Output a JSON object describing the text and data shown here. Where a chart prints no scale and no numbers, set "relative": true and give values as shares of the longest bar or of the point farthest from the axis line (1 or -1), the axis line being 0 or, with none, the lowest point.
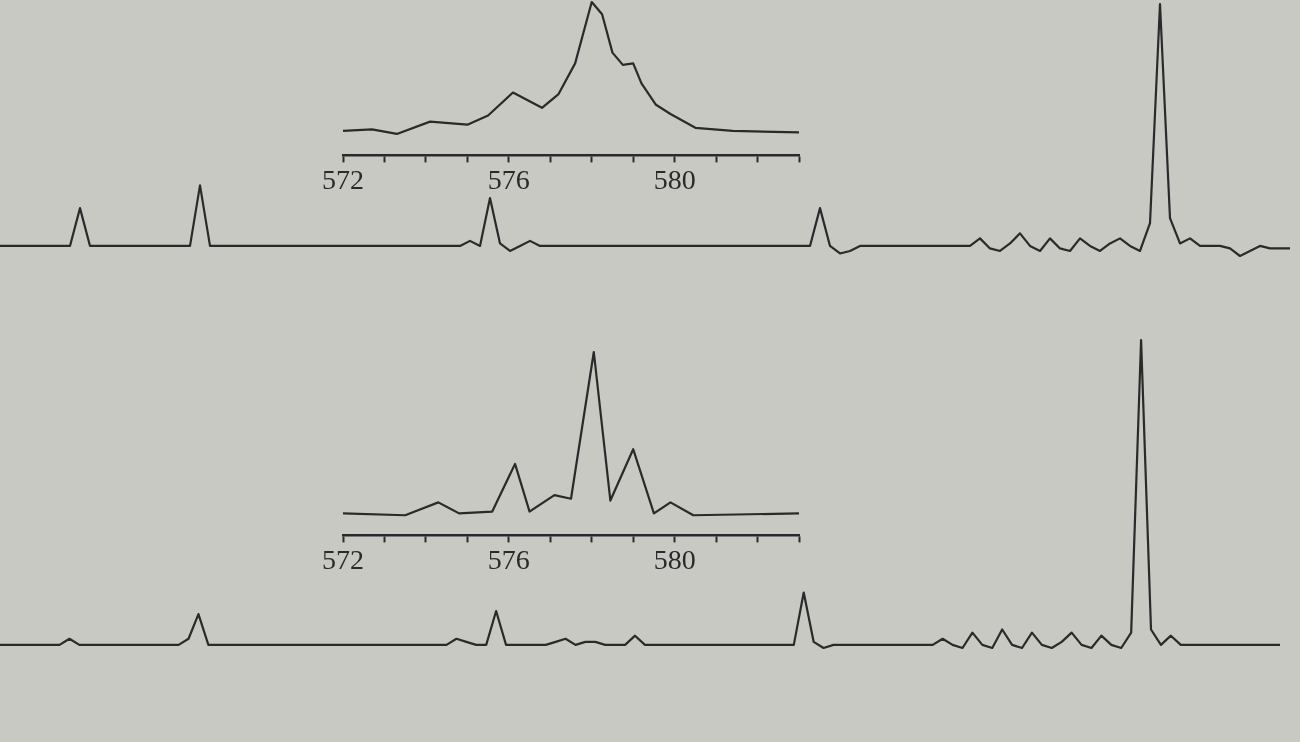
{
  "chart_data": [
    {
      "type": "line",
      "relative": true,
      "tick_labels": "x",
      "xlim": [
        572,
        583
      ],
      "xticks": [
        572,
        {
          "value": 573,
          "label": null
        },
        {
          "value": 574,
          "label": null
        },
        {
          "value": 575,
          "label": null
        },
        576,
        {
          "value": 577,
          "label": null
        },
        {
          "value": 578,
          "label": null
        },
        {
          "value": 579,
          "label": null
        },
        580,
        {
          "value": 581,
          "label": null
        },
        {
          "value": 582,
          "label": null
        },
        {
          "value": 583,
          "label": null
        }
      ],
      "series": [
        {
          "color": "#2a2a2a",
          "x": [
            572.0,
            572.7,
            573.3,
            574.1,
            575.0,
            575.5,
            576.1,
            576.8,
            577.2,
            577.6,
            578.0,
            578.25,
            578.5,
            578.75,
            579.0,
            579.2,
            579.55,
            579.9,
            580.5,
            581.4,
            583.0
          ],
          "values": [
            0.16,
            0.17,
            0.14,
            0.22,
            0.2,
            0.26,
            0.41,
            0.31,
            0.4,
            0.6,
            1,
            0.92,
            0.67,
            0.59,
            0.6,
            0.47,
            0.33,
            0.27,
            0.18,
            0.16,
            0.15
          ]
        }
      ]
    },
    {
      "type": "line",
      "relative": true,
      "tick_labels": false,
      "categories": [
        null,
        null,
        null,
        null,
        null,
        null,
        null,
        null,
        null,
        null,
        null,
        null,
        null,
        null,
        null,
        null,
        null,
        null,
        null,
        null,
        null,
        null,
        null,
        null,
        null,
        null,
        null,
        null,
        null,
        null,
        null,
        null,
        null,
        null,
        null,
        null,
        null,
        null,
        null,
        null,
        null,
        null,
        null,
        null,
        null,
        null,
        null,
        null,
        null,
        null,
        null,
        null,
        null,
        null,
        null,
        null,
        null,
        null,
        null,
        null,
        null,
        null,
        null,
        null,
        null,
        null,
        null,
        null,
        null,
        null,
        null,
        null,
        null,
        null,
        null,
        null,
        null,
        null,
        null,
        null,
        null,
        null,
        null,
        null,
        null,
        null,
        null,
        null,
        null,
        null,
        null,
        null,
        null,
        null,
        null,
        null,
        null,
        null,
        null,
        null,
        null,
        null,
        null,
        null,
        null,
        null,
        null,
        null,
        null,
        null,
        null,
        null,
        null,
        null,
        null,
        null,
        null,
        null,
        null,
        null,
        null,
        null,
        null,
        null,
        null,
        null,
        null,
        null,
        null,
        null
      ],
      "series": [
        {
          "color": "#2a2a2a",
          "values": [
            0.04,
            0.04,
            0.04,
            0.04,
            0.04,
            0.04,
            0.04,
            0.04,
            0.19,
            0.04,
            0.04,
            0.04,
            0.04,
            0.04,
            0.04,
            0.04,
            0.04,
            0.04,
            0.04,
            0.04,
            0.28,
            0.04,
            0.04,
            0.04,
            0.04,
            0.04,
            0.04,
            0.04,
            0.04,
            0.04,
            0.04,
            0.04,
            0.04,
            0.04,
            0.04,
            0.04,
            0.04,
            0.04,
            0.04,
            0.04,
            0.04,
            0.04,
            0.04,
            0.04,
            0.04,
            0.04,
            0.04,
            0.06,
            0.04,
            0.23,
            0.05,
            0.02,
            0.04,
            0.06,
            0.04,
            0.04,
            0.04,
            0.04,
            0.04,
            0.04,
            0.04,
            0.04,
            0.04,
            0.04,
            0.04,
            0.04,
            0.04,
            0.04,
            0.04,
            0.04,
            0.04,
            0.04,
            0.04,
            0.04,
            0.04,
            0.04,
            0.04,
            0.04,
            0.04,
            0.04,
            0.04,
            0.04,
            0.19,
            0.04,
            0.01,
            0.02,
            0.04,
            0.04,
            0.04,
            0.04,
            0.04,
            0.04,
            0.04,
            0.04,
            0.04,
            0.04,
            0.04,
            0.04,
            0.07,
            0.03,
            0.02,
            0.05,
            0.09,
            0.04,
            0.02,
            0.07,
            0.03,
            0.02,
            0.07,
            0.04,
            0.02,
            0.05,
            0.07,
            0.04,
            0.02,
            0.13,
            1,
            0.15,
            0.05,
            0.07,
            0.04,
            0.04,
            0.04,
            0.03,
            0,
            0.02,
            0.04,
            0.03,
            0.03,
            0.03
          ]
        }
      ]
    },
    {
      "type": "line",
      "relative": true,
      "tick_labels": "x",
      "xlim": [
        572,
        583
      ],
      "xticks": [
        572,
        {
          "value": 573,
          "label": null
        },
        {
          "value": 574,
          "label": null
        },
        {
          "value": 575,
          "label": null
        },
        576,
        {
          "value": 577,
          "label": null
        },
        {
          "value": 578,
          "label": null
        },
        {
          "value": 579,
          "label": null
        },
        580,
        {
          "value": 581,
          "label": null
        },
        {
          "value": 582,
          "label": null
        },
        {
          "value": 583,
          "label": null
        }
      ],
      "series": [
        {
          "color": "#2a2a2a",
          "x": [
            572.0,
            573.5,
            574.3,
            574.8,
            575.6,
            576.15,
            576.5,
            577.1,
            577.5,
            578.05,
            578.45,
            579.0,
            579.5,
            579.9,
            580.45,
            583.0
          ],
          "values": [
            0.12,
            0.11,
            0.18,
            0.12,
            0.13,
            0.39,
            0.13,
            0.22,
            0.2,
            1,
            0.19,
            0.47,
            0.12,
            0.18,
            0.11,
            0.12
          ]
        }
      ]
    },
    {
      "type": "line",
      "relative": true,
      "tick_labels": false,
      "categories": [
        null,
        null,
        null,
        null,
        null,
        null,
        null,
        null,
        null,
        null,
        null,
        null,
        null,
        null,
        null,
        null,
        null,
        null,
        null,
        null,
        null,
        null,
        null,
        null,
        null,
        null,
        null,
        null,
        null,
        null,
        null,
        null,
        null,
        null,
        null,
        null,
        null,
        null,
        null,
        null,
        null,
        null,
        null,
        null,
        null,
        null,
        null,
        null,
        null,
        null,
        null,
        null,
        null,
        null,
        null,
        null,
        null,
        null,
        null,
        null,
        null,
        null,
        null,
        null,
        null,
        null,
        null,
        null,
        null,
        null,
        null,
        null,
        null,
        null,
        null,
        null,
        null,
        null,
        null,
        null,
        null,
        null,
        null,
        null,
        null,
        null,
        null,
        null,
        null,
        null,
        null,
        null,
        null,
        null,
        null,
        null,
        null,
        null,
        null,
        null,
        null,
        null,
        null,
        null,
        null,
        null,
        null,
        null,
        null,
        null,
        null,
        null,
        null,
        null,
        null,
        null,
        null,
        null,
        null,
        null,
        null,
        null,
        null,
        null,
        null,
        null,
        null,
        null,
        null,
        null
      ],
      "series": [
        {
          "color": "#2a2a2a",
          "values": [
            0.01,
            0.01,
            0.01,
            0.01,
            0.01,
            0.01,
            0.01,
            0.03,
            0.01,
            0.01,
            0.01,
            0.01,
            0.01,
            0.01,
            0.01,
            0.01,
            0.01,
            0.01,
            0.01,
            0.03,
            0.11,
            0.01,
            0.01,
            0.01,
            0.01,
            0.01,
            0.01,
            0.01,
            0.01,
            0.01,
            0.01,
            0.01,
            0.01,
            0.01,
            0.01,
            0.01,
            0.01,
            0.01,
            0.01,
            0.01,
            0.01,
            0.01,
            0.01,
            0.01,
            0.01,
            0.01,
            0.03,
            0.02,
            0.01,
            0.01,
            0.12,
            0.01,
            0.01,
            0.01,
            0.01,
            0.01,
            0.02,
            0.03,
            0.01,
            0.02,
            0.02,
            0.01,
            0.01,
            0.01,
            0.04,
            0.01,
            0.01,
            0.01,
            0.01,
            0.01,
            0.01,
            0.01,
            0.01,
            0.01,
            0.01,
            0.01,
            0.01,
            0.01,
            0.01,
            0.01,
            0.01,
            0.18,
            0.02,
            0,
            0.01,
            0.01,
            0.01,
            0.01,
            0.01,
            0.01,
            0.01,
            0.01,
            0.01,
            0.01,
            0.01,
            0.03,
            0.01,
            0,
            0.05,
            0.01,
            0,
            0.06,
            0.01,
            0,
            0.05,
            0.01,
            0,
            0.02,
            0.05,
            0.01,
            0,
            0.04,
            0.01,
            0,
            0.05,
            1,
            0.06,
            0.01,
            0.04,
            0.01,
            0.01,
            0.01,
            0.01,
            0.01,
            0.01,
            0.01,
            0.01,
            0.01,
            0.01,
            0.01
          ]
        }
      ]
    }
  ]
}
